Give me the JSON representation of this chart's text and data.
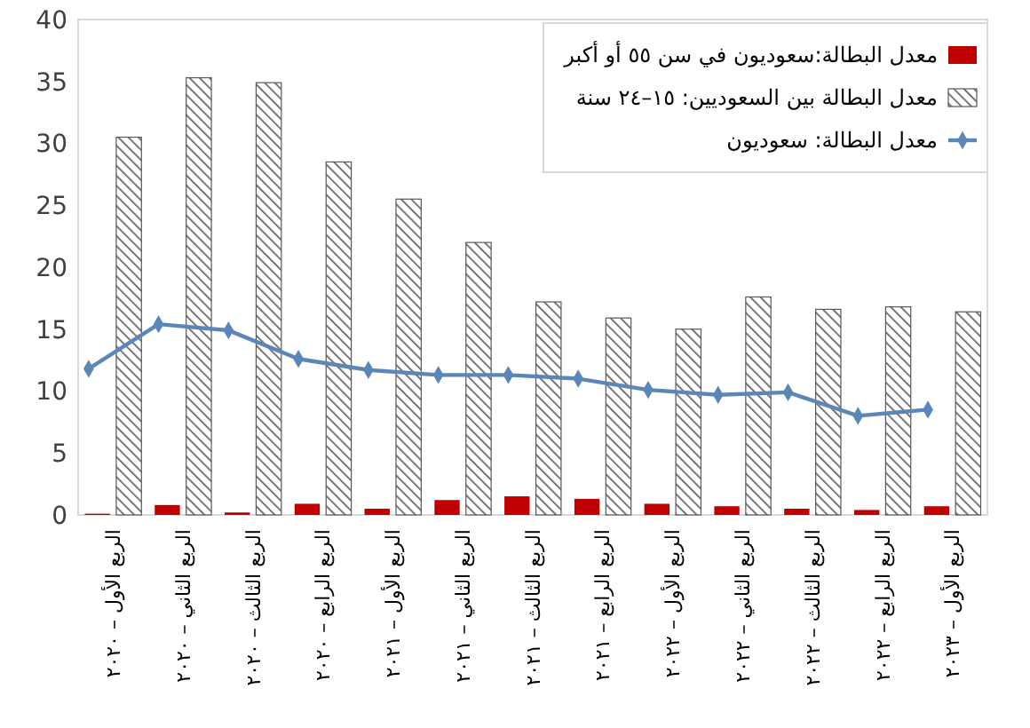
{
  "chart_data": {
    "type": "bar",
    "categories": [
      "الربع الأول – ٢٠٢٠",
      "الربع الثاني – ٢٠٢٠",
      "الربع الثالث – ٢٠٢٠",
      "الربع الرابع – ٢٠٢٠",
      "الربع الأول – ٢٠٢١",
      "الربع الثاني – ٢٠٢١",
      "الربع الثالث – ٢٠٢١",
      "الربع الرابع – ٢٠٢١",
      "الربع الأول – ٢٠٢٢",
      "الربع الثاني – ٢٠٢٢",
      "الربع الثالث – ٢٠٢٢",
      "الربع الرابع – ٢٠٢٢",
      "الربع الأول – ٢٠٢٣"
    ],
    "series": [
      {
        "name": "معدل البطالة:سعوديون في سن ٥٥ أو أكبر",
        "color": "#c00000",
        "values": [
          0.1,
          0.8,
          0.2,
          0.9,
          0.5,
          1.2,
          1.5,
          1.3,
          0.9,
          0.7,
          0.5,
          0.4,
          0.7
        ]
      },
      {
        "name": "معدل البطالة بين السعوديين: ١٥–٢٤ سنة",
        "color": "#595959",
        "values": [
          30.5,
          35.3,
          34.9,
          28.5,
          25.5,
          22.0,
          17.2,
          15.9,
          15.0,
          17.6,
          16.6,
          16.8,
          16.4
        ]
      },
      {
        "name": "معدل البطالة: سعوديون",
        "type": "line",
        "color": "#5b87b8",
        "values": [
          11.8,
          15.4,
          14.9,
          12.6,
          11.7,
          11.3,
          11.3,
          11.0,
          10.1,
          9.7,
          9.9,
          8.0,
          8.5
        ]
      }
    ],
    "ylim": [
      0,
      40
    ],
    "yticks": [
      0,
      5,
      10,
      15,
      20,
      25,
      30,
      35,
      40
    ],
    "legend": "top right",
    "marker": "diamond",
    "line_style": "solid"
  }
}
